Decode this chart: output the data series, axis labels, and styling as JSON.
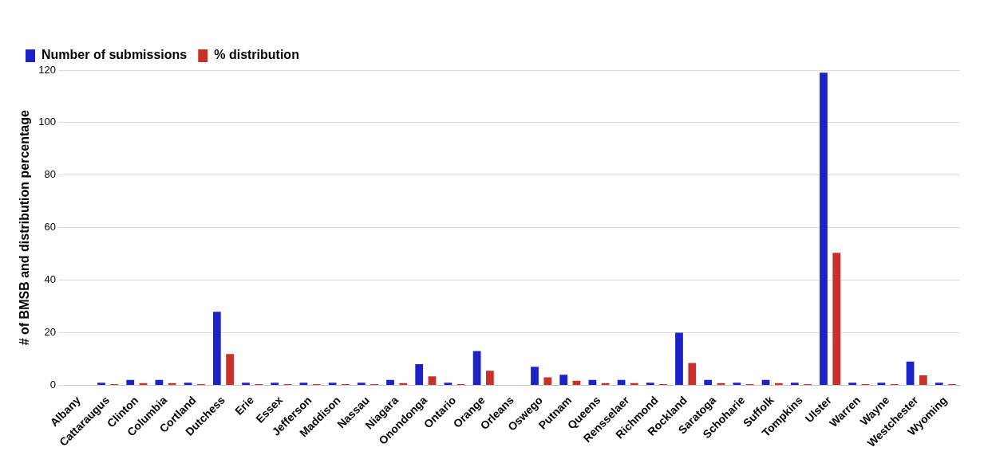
{
  "chart_data": {
    "type": "bar",
    "ylabel": "# of BMSB and distribution percentage",
    "categories": [
      "Albany",
      "Cattaraugus",
      "Clinton",
      "Columbia",
      "Cortland",
      "Dutchess",
      "Erie",
      "Essex",
      "Jefferson",
      "Maddison",
      "Nassau",
      "Niagara",
      "Onondonga",
      "Ontario",
      "Orange",
      "Orleans",
      "Oswego",
      "Putnam",
      "Queens",
      "Rensselaer",
      "Richmond",
      "Rockland",
      "Saratoga",
      "Schoharie",
      "Suffolk",
      "Tompkins",
      "Ulster",
      "Warren",
      "Wayne",
      "Westchester",
      "Wyoming"
    ],
    "series": [
      {
        "name": "Number of submissions",
        "color": "#1c22c8",
        "values": [
          0,
          1,
          2,
          2,
          1,
          28,
          1,
          1,
          1,
          1,
          1,
          2,
          8,
          1,
          13,
          0,
          7,
          4,
          2,
          2,
          1,
          20,
          2,
          1,
          2,
          1,
          119,
          1,
          1,
          9,
          1
        ]
      },
      {
        "name": "% distribution",
        "color": "#c8302c",
        "values": [
          0,
          0.4,
          0.8,
          0.8,
          0.4,
          11.9,
          0.4,
          0.4,
          0.4,
          0.4,
          0.4,
          0.8,
          3.4,
          0.4,
          5.5,
          0,
          3.0,
          1.7,
          0.8,
          0.8,
          0.4,
          8.5,
          0.8,
          0.4,
          0.8,
          0.4,
          50.4,
          0.4,
          0.4,
          3.8,
          0.4
        ]
      }
    ],
    "ylim": [
      0,
      120
    ],
    "yticks": [
      0,
      20,
      40,
      60,
      80,
      100,
      120
    ],
    "grid": "y",
    "legend": "top left"
  }
}
